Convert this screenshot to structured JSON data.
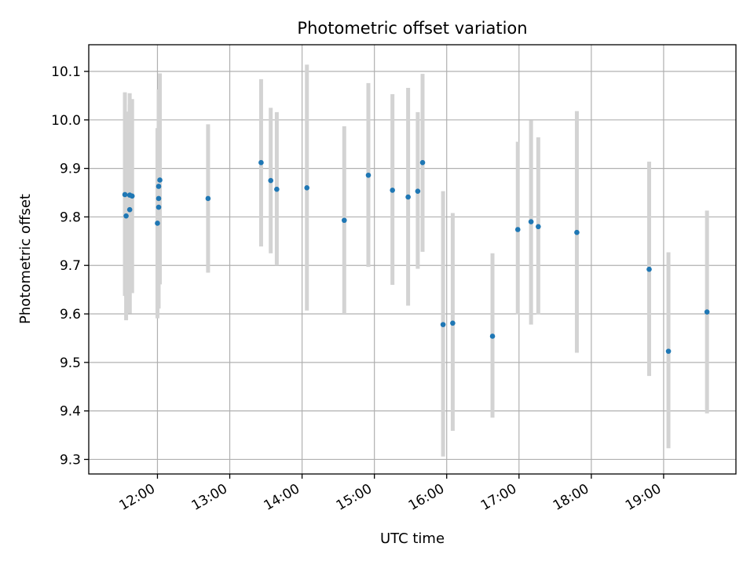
{
  "chart_data": {
    "type": "scatter",
    "title": "Photometric offset variation",
    "xlabel": "UTC time",
    "ylabel": "Photometric offset",
    "x_axis_type": "time",
    "xlim": [
      "11:03",
      "20:00"
    ],
    "ylim": [
      9.27,
      10.155
    ],
    "grid": true,
    "legend": "none",
    "x_ticks": [
      "12:00",
      "13:00",
      "14:00",
      "15:00",
      "16:00",
      "17:00",
      "18:00",
      "19:00"
    ],
    "y_ticks": [
      9.3,
      9.4,
      9.5,
      9.6,
      9.7,
      9.8,
      9.9,
      10.0,
      10.1
    ],
    "y_tick_labels": [
      "9.3",
      "9.4",
      "9.5",
      "9.6",
      "9.7",
      "9.8",
      "9.9",
      "10.0",
      "10.1"
    ],
    "colors": {
      "points": "#1f77b4",
      "error_bars": "#d3d3d3",
      "grid": "#b0b0b0"
    },
    "series": [
      {
        "points": [
          {
            "x": "11:33",
            "y": 9.846,
            "ylow": 9.637,
            "yhigh": 10.057
          },
          {
            "x": "11:34",
            "y": 9.802,
            "ylow": 9.587,
            "yhigh": 10.017
          },
          {
            "x": "11:37",
            "y": 9.845,
            "ylow": 9.601,
            "yhigh": 10.055
          },
          {
            "x": "11:37",
            "y": 9.815,
            "ylow": 9.601,
            "yhigh": 10.031
          },
          {
            "x": "11:39",
            "y": 9.843,
            "ylow": 9.643,
            "yhigh": 10.043
          },
          {
            "x": "12:00",
            "y": 9.787,
            "ylow": 9.591,
            "yhigh": 9.983
          },
          {
            "x": "12:01",
            "y": 9.838,
            "ylow": 9.641,
            "yhigh": 10.036
          },
          {
            "x": "12:01",
            "y": 9.82,
            "ylow": 9.611,
            "yhigh": 10.041
          },
          {
            "x": "12:01",
            "y": 9.863,
            "ylow": 9.663,
            "yhigh": 10.063
          },
          {
            "x": "12:02",
            "y": 9.876,
            "ylow": 9.661,
            "yhigh": 10.096
          },
          {
            "x": "12:42",
            "y": 9.838,
            "ylow": 9.685,
            "yhigh": 9.991
          },
          {
            "x": "13:26",
            "y": 9.912,
            "ylow": 9.739,
            "yhigh": 10.084
          },
          {
            "x": "13:34",
            "y": 9.875,
            "ylow": 9.725,
            "yhigh": 10.025
          },
          {
            "x": "13:39",
            "y": 9.857,
            "ylow": 9.7,
            "yhigh": 10.016
          },
          {
            "x": "14:04",
            "y": 9.86,
            "ylow": 9.607,
            "yhigh": 10.114
          },
          {
            "x": "14:35",
            "y": 9.793,
            "ylow": 9.6,
            "yhigh": 9.987
          },
          {
            "x": "14:55",
            "y": 9.886,
            "ylow": 9.697,
            "yhigh": 10.076
          },
          {
            "x": "15:15",
            "y": 9.855,
            "ylow": 9.66,
            "yhigh": 10.053
          },
          {
            "x": "15:28",
            "y": 9.841,
            "ylow": 9.617,
            "yhigh": 10.066
          },
          {
            "x": "15:36",
            "y": 9.853,
            "ylow": 9.693,
            "yhigh": 10.016
          },
          {
            "x": "15:40",
            "y": 9.912,
            "ylow": 9.728,
            "yhigh": 10.095
          },
          {
            "x": "15:57",
            "y": 9.578,
            "ylow": 9.306,
            "yhigh": 9.853
          },
          {
            "x": "16:05",
            "y": 9.581,
            "ylow": 9.359,
            "yhigh": 9.808
          },
          {
            "x": "16:38",
            "y": 9.554,
            "ylow": 9.386,
            "yhigh": 9.725
          },
          {
            "x": "16:59",
            "y": 9.774,
            "ylow": 9.599,
            "yhigh": 9.955
          },
          {
            "x": "17:10",
            "y": 9.79,
            "ylow": 9.578,
            "yhigh": 9.999
          },
          {
            "x": "17:16",
            "y": 9.78,
            "ylow": 9.599,
            "yhigh": 9.964
          },
          {
            "x": "17:48",
            "y": 9.768,
            "ylow": 9.52,
            "yhigh": 10.018
          },
          {
            "x": "18:48",
            "y": 9.692,
            "ylow": 9.472,
            "yhigh": 9.914
          },
          {
            "x": "19:04",
            "y": 9.523,
            "ylow": 9.323,
            "yhigh": 9.727
          },
          {
            "x": "19:36",
            "y": 9.604,
            "ylow": 9.395,
            "yhigh": 9.813
          }
        ]
      }
    ]
  }
}
